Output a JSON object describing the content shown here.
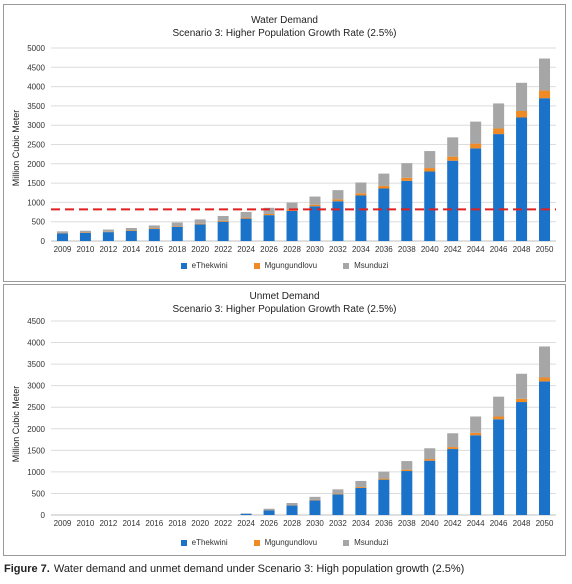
{
  "caption": {
    "label": "Figure 7.",
    "text": "Water demand and unmet demand under Scenario 3: High population growth (2.5%)"
  },
  "colors": {
    "eThekwini": "#1a73c9",
    "Mgungundlovu": "#f08a24",
    "Msunduzi": "#a6a6a6",
    "threshold": "#e02020"
  },
  "chart_data": [
    {
      "type": "bar",
      "stacked": true,
      "title": "Water Demand",
      "subtitle": "Scenario 3: Higher Population Growth Rate (2.5%)",
      "ylabel": "Million Cubic Meter",
      "xlabel": "",
      "ylim": [
        0,
        5000
      ],
      "yticks": [
        0,
        500,
        1000,
        1500,
        2000,
        2500,
        3000,
        3500,
        4000,
        4500,
        5000
      ],
      "grid": true,
      "legend_position": "bottom",
      "categories": [
        "2009",
        "2010",
        "2012",
        "2014",
        "2016",
        "2018",
        "2020",
        "2022",
        "2024",
        "2026",
        "2028",
        "2030",
        "2032",
        "2034",
        "2036",
        "2038",
        "2040",
        "2042",
        "2044",
        "2046",
        "2048",
        "2050"
      ],
      "series": [
        {
          "name": "eThekwini",
          "values": [
            200,
            210,
            230,
            260,
            310,
            370,
            430,
            500,
            580,
            670,
            780,
            900,
            1030,
            1180,
            1360,
            1560,
            1800,
            2080,
            2400,
            2770,
            3200,
            3700
          ]
        },
        {
          "name": "Mgungundlovu",
          "values": [
            10,
            10,
            11,
            12,
            14,
            16,
            19,
            22,
            26,
            30,
            35,
            41,
            48,
            56,
            66,
            77,
            90,
            105,
            123,
            144,
            168,
            197
          ]
        },
        {
          "name": "Msunduzi",
          "values": [
            40,
            45,
            55,
            65,
            80,
            95,
            110,
            125,
            145,
            160,
            180,
            210,
            240,
            280,
            320,
            380,
            440,
            500,
            570,
            650,
            730,
            830
          ]
        }
      ],
      "threshold_line": {
        "value": 820,
        "style": "dashed"
      }
    },
    {
      "type": "bar",
      "stacked": true,
      "title": "Unmet Demand",
      "subtitle": "Scenario 3: Higher Population Growth Rate (2.5%)",
      "ylabel": "Million Cubic Meter",
      "xlabel": "",
      "ylim": [
        0,
        4500
      ],
      "yticks": [
        0,
        500,
        1000,
        1500,
        2000,
        2500,
        3000,
        3500,
        4000,
        4500
      ],
      "grid": true,
      "legend_position": "bottom",
      "categories": [
        "2009",
        "2010",
        "2012",
        "2014",
        "2016",
        "2018",
        "2020",
        "2022",
        "2024",
        "2026",
        "2028",
        "2030",
        "2032",
        "2034",
        "2036",
        "2038",
        "2040",
        "2042",
        "2044",
        "2046",
        "2048",
        "2050"
      ],
      "series": [
        {
          "name": "eThekwini",
          "values": [
            0,
            0,
            0,
            0,
            0,
            0,
            0,
            0,
            30,
            110,
            220,
            340,
            480,
            630,
            820,
            1020,
            1260,
            1530,
            1850,
            2220,
            2620,
            3100
          ]
        },
        {
          "name": "Mgungundlovu",
          "values": [
            0,
            0,
            0,
            0,
            0,
            0,
            0,
            0,
            2,
            5,
            8,
            11,
            15,
            20,
            25,
            31,
            38,
            46,
            55,
            65,
            76,
            89
          ]
        },
        {
          "name": "Msunduzi",
          "values": [
            0,
            0,
            0,
            0,
            0,
            0,
            0,
            0,
            5,
            30,
            50,
            70,
            100,
            140,
            160,
            200,
            250,
            320,
            380,
            460,
            580,
            720
          ]
        }
      ]
    }
  ]
}
